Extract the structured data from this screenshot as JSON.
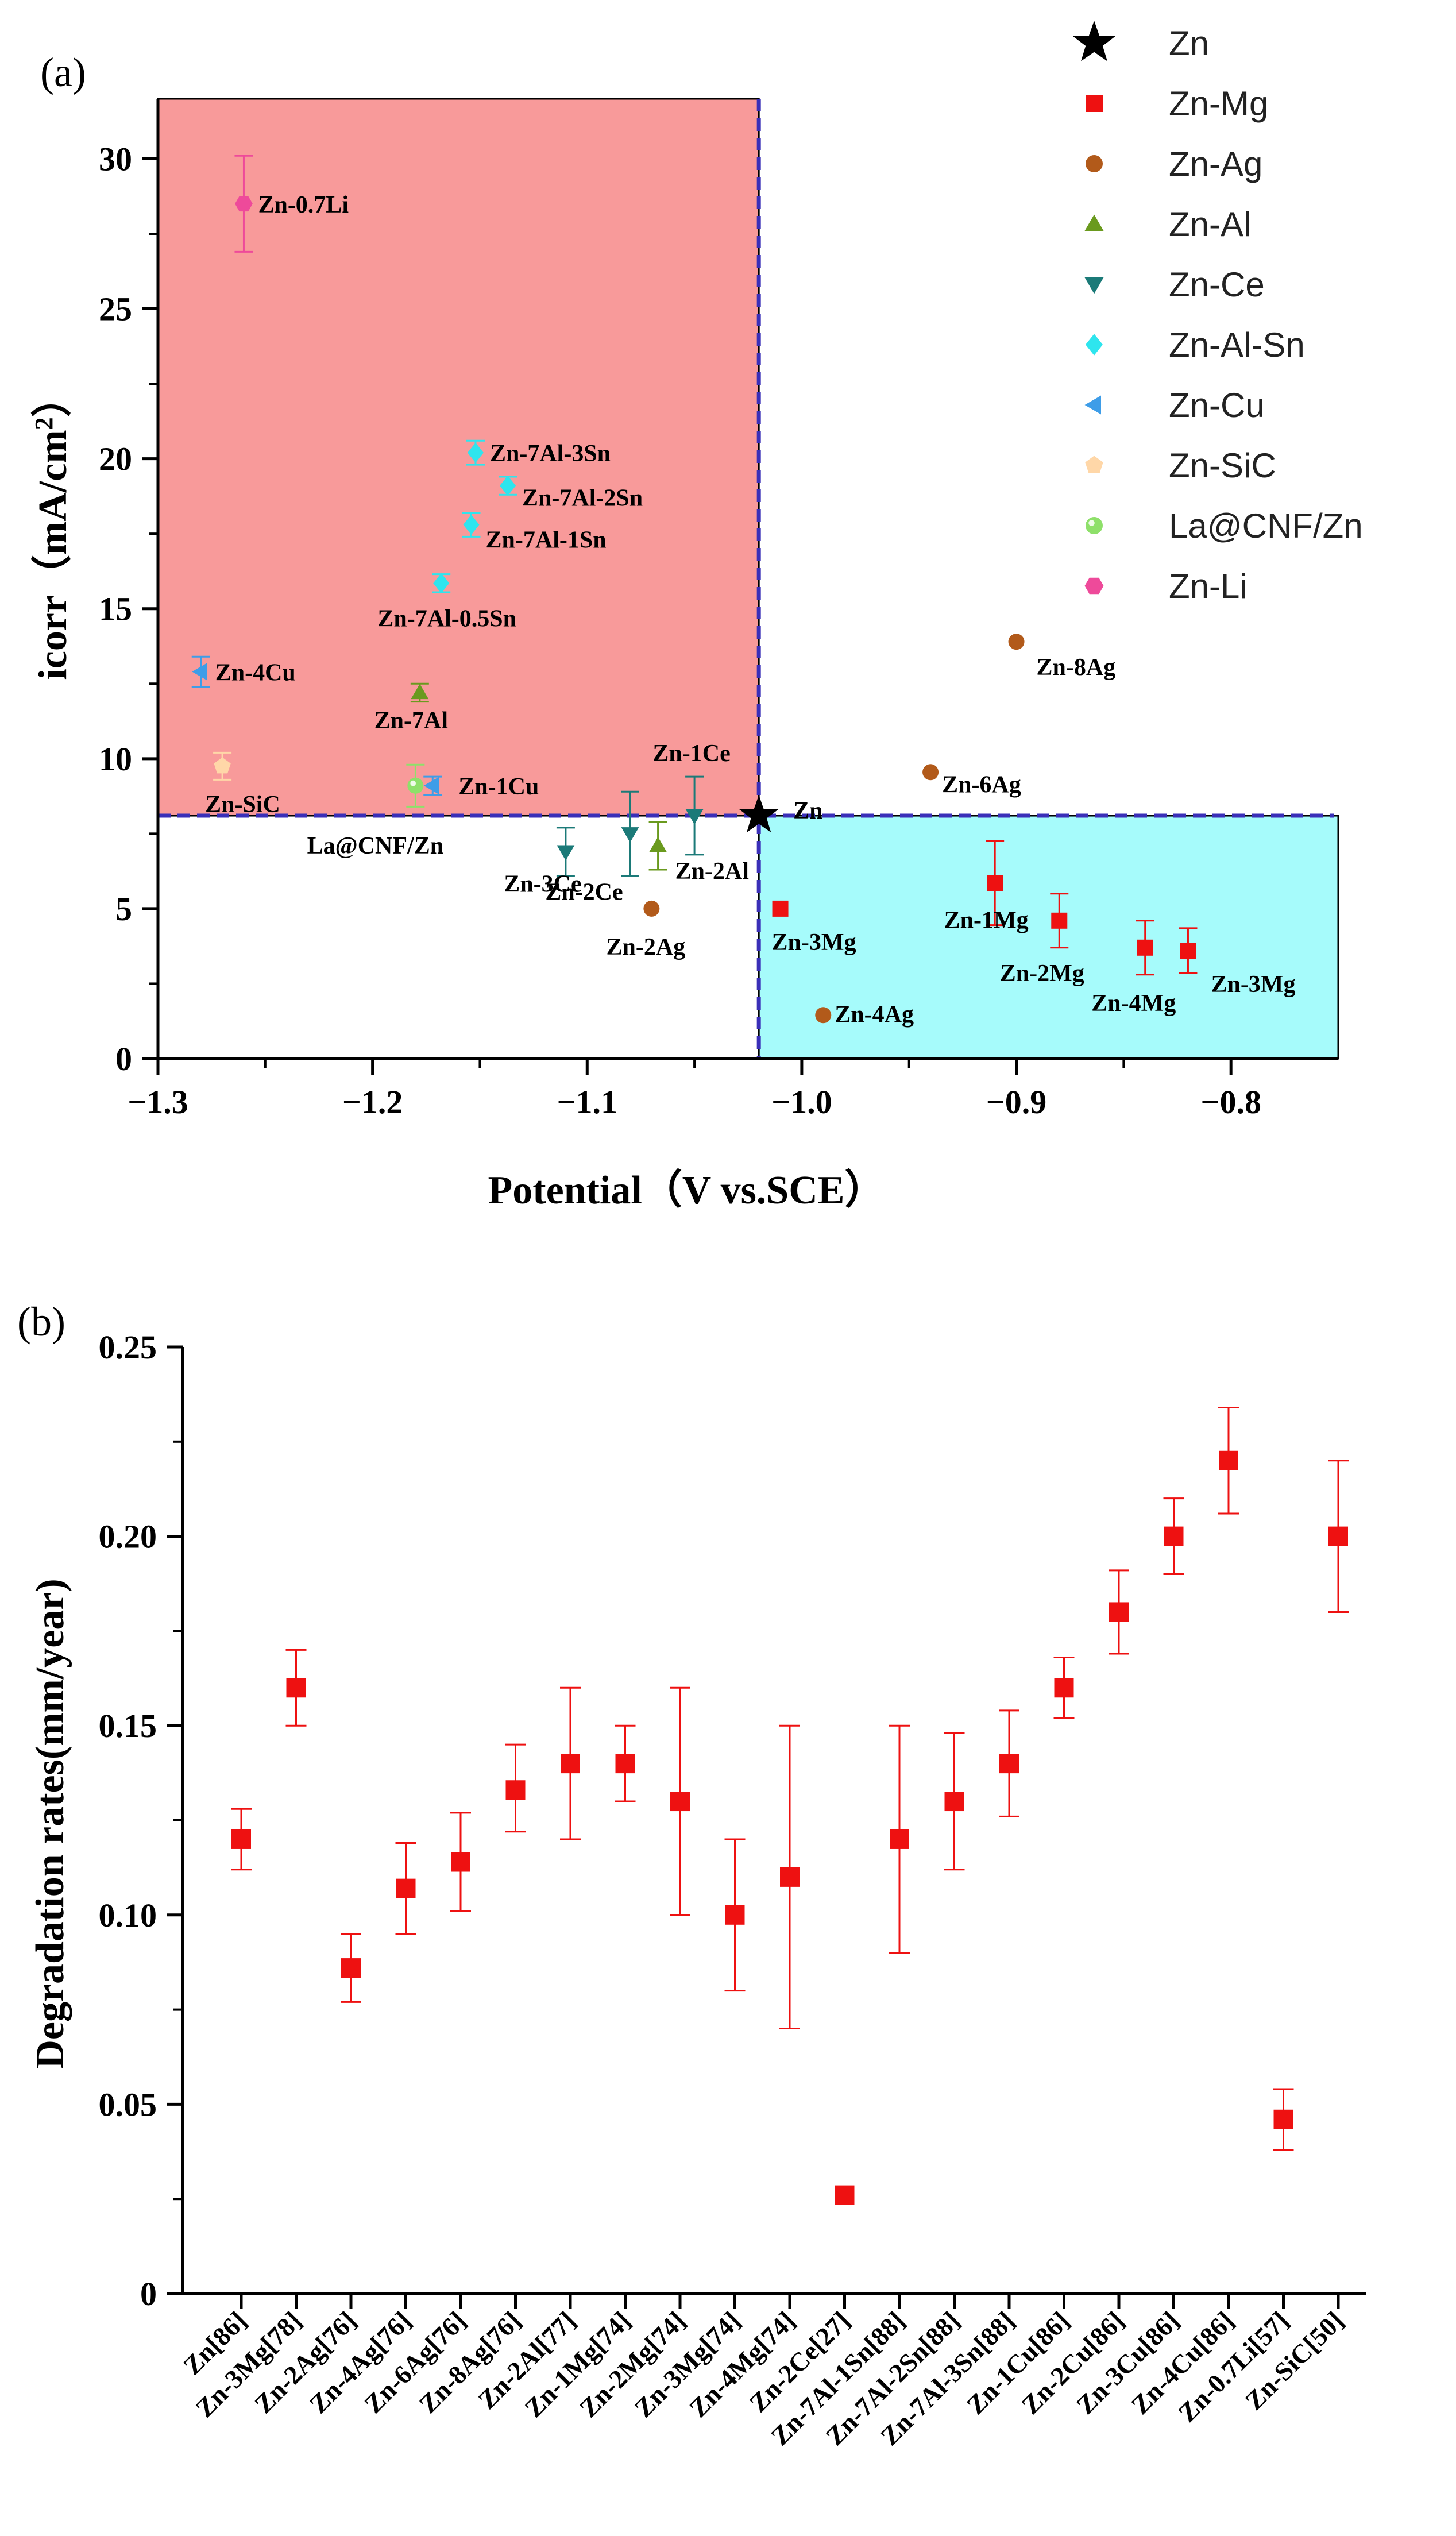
{
  "chart_data": [
    {
      "panel": "(a)",
      "type": "scatter",
      "xlabel": "Potential（V vs.SCE）",
      "ylabel": "icorr（mA/cm²）",
      "ylabel_main": "icorr（mA/cm",
      "ylabel_sup": "2",
      "ylabel_end": "）",
      "xlim": [
        -1.3,
        -0.75
      ],
      "ylim": [
        0,
        32
      ],
      "xticks": [
        -1.3,
        -1.2,
        -1.1,
        -1.0,
        -0.9,
        -0.8
      ],
      "xtick_labels": [
        "−1.3",
        "−1.2",
        "−1.1",
        "−1.0",
        "−0.9",
        "−0.8"
      ],
      "yticks": [
        0,
        5,
        10,
        15,
        20,
        25,
        30
      ],
      "ytick_labels": [
        "0",
        "5",
        "10",
        "15",
        "20",
        "25",
        "30"
      ],
      "regions": [
        {
          "name": "high-icorr-region",
          "x": [
            -1.3,
            -1.02
          ],
          "y": [
            8.1,
            32
          ],
          "color": "#f89a9a"
        },
        {
          "name": "low-icorr-region",
          "x": [
            -1.02,
            -0.75
          ],
          "y": [
            0,
            8.1
          ],
          "color": "#a6fbfb"
        }
      ],
      "reference": {
        "x": -1.02,
        "y": 8.1
      },
      "legend": [
        {
          "name": "Zn",
          "marker": "star",
          "color": "#000000"
        },
        {
          "name": "Zn-Mg",
          "marker": "square",
          "color": "#ee1111"
        },
        {
          "name": "Zn-Ag",
          "marker": "circle",
          "color": "#b25a1a"
        },
        {
          "name": "Zn-Al",
          "marker": "triangle-up",
          "color": "#6a9a1e"
        },
        {
          "name": "Zn-Ce",
          "marker": "triangle-down",
          "color": "#1b7a78"
        },
        {
          "name": "Zn-Al-Sn",
          "marker": "diamond",
          "color": "#2ee5ee"
        },
        {
          "name": "Zn-Cu",
          "marker": "triangle-left",
          "color": "#3e9de8"
        },
        {
          "name": "Zn-SiC",
          "marker": "pentagon",
          "color": "#ffd7a8"
        },
        {
          "name": "La@CNF/Zn",
          "marker": "sphere",
          "color": "#8ee06a"
        },
        {
          "name": "Zn-Li",
          "marker": "hexagon",
          "color": "#ee4a9a"
        }
      ],
      "series": [
        {
          "name": "Zn",
          "points": [
            {
              "label": "Zn",
              "x": -1.02,
              "y": 8.1,
              "err": 0
            }
          ]
        },
        {
          "name": "Zn-Mg",
          "points": [
            {
              "label": "Zn-3Mg",
              "x": -1.01,
              "y": 5.0,
              "err": 0
            },
            {
              "label": "Zn-1Mg",
              "x": -0.91,
              "y": 5.85,
              "err": 1.4
            },
            {
              "label": "Zn-2Mg",
              "x": -0.88,
              "y": 4.6,
              "err": 0.9
            },
            {
              "label": "Zn-4Mg",
              "x": -0.84,
              "y": 3.7,
              "err": 0.9
            },
            {
              "label": "Zn-3Mg",
              "x": -0.82,
              "y": 3.6,
              "err": 0.75
            }
          ]
        },
        {
          "name": "Zn-Ag",
          "points": [
            {
              "label": "Zn-2Ag",
              "x": -1.07,
              "y": 5.0,
              "err": 0
            },
            {
              "label": "Zn-4Ag",
              "x": -0.99,
              "y": 1.45,
              "err": 0
            },
            {
              "label": "Zn-6Ag",
              "x": -0.94,
              "y": 9.55,
              "err": 0
            },
            {
              "label": "Zn-8Ag",
              "x": -0.9,
              "y": 13.9,
              "err": 0
            }
          ]
        },
        {
          "name": "Zn-Al",
          "points": [
            {
              "label": "Zn-7Al",
              "x": -1.178,
              "y": 12.2,
              "err": 0.3
            },
            {
              "label": "Zn-2Al",
              "x": -1.067,
              "y": 7.1,
              "err": 0.8
            }
          ]
        },
        {
          "name": "Zn-Ce",
          "points": [
            {
              "label": "Zn-3Ce",
              "x": -1.11,
              "y": 6.9,
              "err": 0.8
            },
            {
              "label": "Zn-2Ce",
              "x": -1.08,
              "y": 7.5,
              "err": 1.4
            },
            {
              "label": "Zn-1Ce",
              "x": -1.05,
              "y": 8.1,
              "err": 1.3
            }
          ]
        },
        {
          "name": "Zn-Al-Sn",
          "points": [
            {
              "label": "Zn-7Al-3Sn",
              "x": -1.152,
              "y": 20.2,
              "err": 0.4
            },
            {
              "label": "Zn-7Al-2Sn",
              "x": -1.137,
              "y": 19.1,
              "err": 0.3
            },
            {
              "label": "Zn-7Al-1Sn",
              "x": -1.154,
              "y": 17.8,
              "err": 0.4
            },
            {
              "label": "Zn-7Al-0.5Sn",
              "x": -1.168,
              "y": 15.85,
              "err": 0.3
            }
          ]
        },
        {
          "name": "Zn-Cu",
          "points": [
            {
              "label": "Zn-4Cu",
              "x": -1.28,
              "y": 12.9,
              "err": 0.5
            },
            {
              "label": "Zn-1Cu",
              "x": -1.172,
              "y": 9.1,
              "err": 0.3
            }
          ]
        },
        {
          "name": "Zn-SiC",
          "points": [
            {
              "label": "Zn-SiC",
              "x": -1.27,
              "y": 9.75,
              "err": 0.45
            }
          ]
        },
        {
          "name": "La@CNF/Zn",
          "points": [
            {
              "label": "La@CNF/Zn",
              "x": -1.18,
              "y": 9.1,
              "err": 0.7
            }
          ]
        },
        {
          "name": "Zn-Li",
          "points": [
            {
              "label": "Zn-0.7Li",
              "x": -1.26,
              "y": 28.5,
              "err": 1.6
            }
          ]
        }
      ]
    },
    {
      "panel": "(b)",
      "type": "scatter",
      "xlabel": "",
      "ylabel": "Degradation rates(mm/year)",
      "ylim": [
        0,
        0.25
      ],
      "yticks": [
        0,
        0.05,
        0.1,
        0.15,
        0.2,
        0.25
      ],
      "ytick_labels": [
        "0",
        "0.05",
        "0.10",
        "0.15",
        "0.20",
        "0.25"
      ],
      "marker_color": "#ee1111",
      "categories": [
        "Zn[86]",
        "Zn-3Mg[78]",
        "Zn-2Ag[76]",
        "Zn-4Ag[76]",
        "Zn-6Ag[76]",
        "Zn-8Ag[76]",
        "Zn-2Al[77]",
        "Zn-1Mg[74]",
        "Zn-2Mg[74]",
        "Zn-3Mg[74]",
        "Zn-4Mg[74]",
        "Zn-2Ce[27]",
        "Zn-7Al-1Sn[88]",
        "Zn-7Al-2Sn[88]",
        "Zn-7Al-3Sn[88]",
        "Zn-1Cu[86]",
        "Zn-2Cu[86]",
        "Zn-3Cu[86]",
        "Zn-4Cu[86]",
        "Zn-0.7Li[57]",
        "Zn-SiC[50]"
      ],
      "values": [
        0.12,
        0.16,
        0.086,
        0.107,
        0.114,
        0.133,
        0.14,
        0.14,
        0.13,
        0.1,
        0.11,
        0.026,
        0.12,
        0.13,
        0.14,
        0.16,
        0.18,
        0.2,
        0.22,
        0.046,
        0.2
      ],
      "err_low": [
        0.112,
        0.15,
        0.077,
        0.095,
        0.101,
        0.122,
        0.12,
        0.13,
        0.1,
        0.08,
        0.07,
        0.026,
        0.09,
        0.112,
        0.126,
        0.152,
        0.169,
        0.19,
        0.206,
        0.038,
        0.18
      ],
      "err_high": [
        0.128,
        0.17,
        0.095,
        0.119,
        0.127,
        0.145,
        0.16,
        0.15,
        0.16,
        0.12,
        0.15,
        0.026,
        0.15,
        0.148,
        0.154,
        0.168,
        0.191,
        0.21,
        0.234,
        0.054,
        0.22
      ]
    }
  ]
}
